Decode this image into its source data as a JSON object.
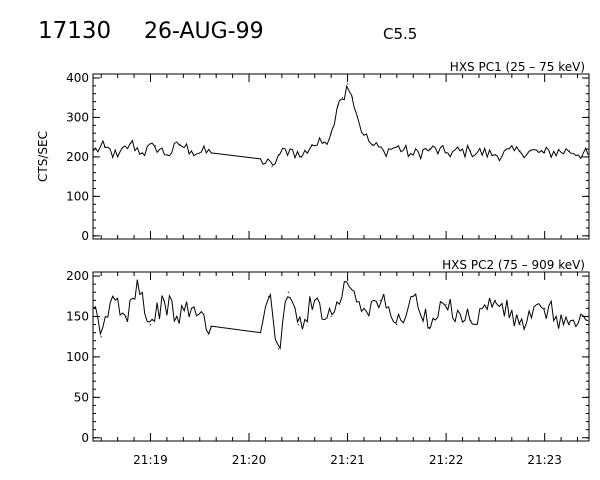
{
  "header": {
    "event_id": "17130",
    "date": "26-AUG-99",
    "flare_class": "C5.5"
  },
  "chart_data": [
    {
      "type": "line",
      "title": "HXS PC1 (25 – 75 keV)",
      "ylabel": "CTS/SEC",
      "xlabel": "",
      "xlim": [
        "21:18:25",
        "21:23:27"
      ],
      "ylim": [
        -8,
        410
      ],
      "yticks": [
        "0",
        "100",
        "200",
        "300",
        "400"
      ],
      "xticks": [
        "21:19",
        "21:20",
        "21:21",
        "21:22",
        "21:23"
      ],
      "grid": false,
      "color": "#000000",
      "gap": {
        "start": "21:19:37",
        "end": "21:20:07"
      },
      "series": [
        {
          "name": "",
          "points": [
            [
              "21:18:25",
              215
            ],
            [
              "21:18:32",
              225
            ],
            [
              "21:18:40",
              200
            ],
            [
              "21:18:48",
              235
            ],
            [
              "21:18:55",
              210
            ],
            [
              "21:19:03",
              228
            ],
            [
              "21:19:10",
              205
            ],
            [
              "21:19:18",
              232
            ],
            [
              "21:19:25",
              215
            ],
            [
              "21:19:37",
              210
            ],
            [
              "21:20:07",
              195
            ],
            [
              "21:20:14",
              175
            ],
            [
              "21:20:18",
              205
            ],
            [
              "21:20:25",
              220
            ],
            [
              "21:20:32",
              200
            ],
            [
              "21:20:38",
              230
            ],
            [
              "21:20:45",
              235
            ],
            [
              "21:20:50",
              260
            ],
            [
              "21:20:54",
              330
            ],
            [
              "21:20:57",
              350
            ],
            [
              "21:21:00",
              385
            ],
            [
              "21:21:03",
              350
            ],
            [
              "21:21:06",
              300
            ],
            [
              "21:21:10",
              255
            ],
            [
              "21:21:15",
              230
            ],
            [
              "21:21:22",
              215
            ],
            [
              "21:21:30",
              225
            ],
            [
              "21:21:40",
              205
            ],
            [
              "21:21:50",
              220
            ],
            [
              "21:22:00",
              210
            ],
            [
              "21:22:15",
              215
            ],
            [
              "21:22:30",
              205
            ],
            [
              "21:22:45",
              215
            ],
            [
              "21:23:00",
              210
            ],
            [
              "21:23:15",
              215
            ],
            [
              "21:23:27",
              205
            ]
          ]
        }
      ]
    },
    {
      "type": "line",
      "title": "HXS PC2 (75 – 909 keV)",
      "ylabel": "",
      "xlabel": "",
      "xlim": [
        "21:18:25",
        "21:23:27"
      ],
      "ylim": [
        -4,
        205
      ],
      "yticks": [
        "0",
        "50",
        "100",
        "150",
        "200"
      ],
      "xticks": [
        "21:19",
        "21:20",
        "21:21",
        "21:22",
        "21:23"
      ],
      "grid": false,
      "color": "#000000",
      "gap": {
        "start": "21:19:37",
        "end": "21:20:07"
      },
      "series": [
        {
          "name": "",
          "points": [
            [
              "21:18:25",
              160
            ],
            [
              "21:18:30",
              125
            ],
            [
              "21:18:37",
              175
            ],
            [
              "21:18:45",
              150
            ],
            [
              "21:18:52",
              195
            ],
            [
              "21:19:00",
              140
            ],
            [
              "21:19:08",
              170
            ],
            [
              "21:19:16",
              150
            ],
            [
              "21:19:25",
              160
            ],
            [
              "21:19:37",
              138
            ],
            [
              "21:20:07",
              130
            ],
            [
              "21:20:12",
              175
            ],
            [
              "21:20:18",
              110
            ],
            [
              "21:20:24",
              180
            ],
            [
              "21:20:30",
              140
            ],
            [
              "21:20:40",
              170
            ],
            [
              "21:20:50",
              150
            ],
            [
              "21:21:00",
              195
            ],
            [
              "21:21:10",
              160
            ],
            [
              "21:21:20",
              170
            ],
            [
              "21:21:30",
              140
            ],
            [
              "21:21:40",
              175
            ],
            [
              "21:21:50",
              135
            ],
            [
              "21:22:00",
              165
            ],
            [
              "21:22:15",
              145
            ],
            [
              "21:22:30",
              170
            ],
            [
              "21:22:45",
              140
            ],
            [
              "21:23:00",
              160
            ],
            [
              "21:23:15",
              140
            ],
            [
              "21:23:27",
              145
            ]
          ]
        }
      ]
    }
  ]
}
